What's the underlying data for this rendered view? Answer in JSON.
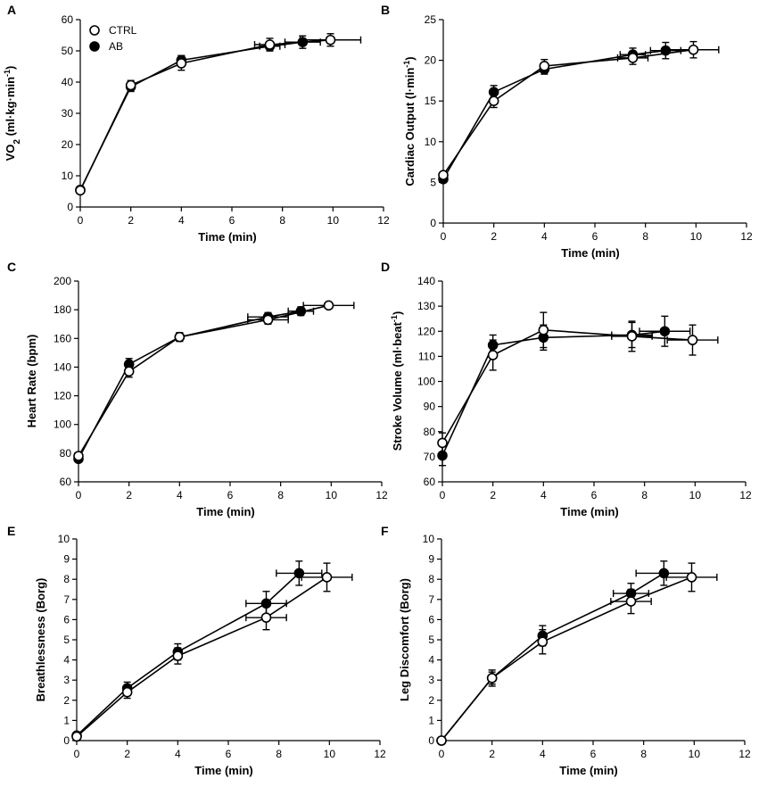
{
  "legend": {
    "series": [
      "CTRL",
      "AB"
    ]
  },
  "chart_data": [
    {
      "panel": "A",
      "type": "line",
      "xlabel": "Time (min)",
      "ylabel_main": "VO",
      "ylabel_sub": "2",
      "ylabel_rest": " (ml·kg·min",
      "ylabel_sup": "-1",
      "ylabel_end": ")",
      "xlim": [
        0,
        12
      ],
      "ylim": [
        0,
        60
      ],
      "xticks": [
        "0",
        "2",
        "4",
        "6",
        "8",
        "10",
        "12"
      ],
      "yticks": [
        "0",
        "10",
        "20",
        "30",
        "40",
        "50",
        "60"
      ],
      "series": [
        {
          "name": "CTRL",
          "x": [
            0,
            2,
            4,
            7.5,
            9.9
          ],
          "y": [
            5.3,
            39.0,
            46.0,
            52.0,
            53.5
          ],
          "yerr": [
            0.5,
            1.5,
            2.2,
            2.0,
            2.0
          ],
          "xerr": [
            0,
            0,
            0,
            0.6,
            1.2
          ]
        },
        {
          "name": "AB",
          "x": [
            0,
            2,
            4,
            7.5,
            8.8
          ],
          "y": [
            5.5,
            38.5,
            47.0,
            51.5,
            52.8
          ],
          "yerr": [
            0.5,
            1.5,
            1.5,
            1.5,
            2.0
          ],
          "xerr": [
            0,
            0,
            0,
            0.4,
            0.7
          ]
        }
      ]
    },
    {
      "panel": "B",
      "type": "line",
      "xlabel": "Time (min)",
      "ylabel_main": "Cardiac Output (l·min",
      "ylabel_sup": "-1",
      "ylabel_end": ")",
      "xlim": [
        0,
        12
      ],
      "ylim": [
        0,
        25
      ],
      "xticks": [
        "0",
        "2",
        "4",
        "6",
        "8",
        "10",
        "12"
      ],
      "yticks": [
        "0",
        "5",
        "10",
        "15",
        "20",
        "25"
      ],
      "series": [
        {
          "name": "CTRL",
          "x": [
            0,
            2,
            4,
            7.5,
            9.9
          ],
          "y": [
            5.9,
            15.0,
            19.3,
            20.3,
            21.3
          ],
          "yerr": [
            0.3,
            0.8,
            0.8,
            0.8,
            1.0
          ],
          "xerr": [
            0,
            0,
            0,
            0.6,
            1.0
          ]
        },
        {
          "name": "AB",
          "x": [
            0,
            2,
            4,
            7.5,
            8.8
          ],
          "y": [
            5.4,
            16.1,
            18.9,
            20.7,
            21.2
          ],
          "yerr": [
            0.3,
            0.8,
            0.6,
            0.8,
            1.0
          ],
          "xerr": [
            0,
            0,
            0,
            0.5,
            0.6
          ]
        }
      ]
    },
    {
      "panel": "C",
      "type": "line",
      "xlabel": "Time (min)",
      "ylabel_main": "Heart Rate (bpm)",
      "xlim": [
        0,
        12
      ],
      "ylim": [
        60,
        200
      ],
      "xticks": [
        "0",
        "2",
        "4",
        "6",
        "8",
        "10",
        "12"
      ],
      "yticks": [
        "60",
        "80",
        "100",
        "120",
        "140",
        "160",
        "180",
        "200"
      ],
      "series": [
        {
          "name": "CTRL",
          "x": [
            0,
            2,
            4,
            7.5,
            9.9
          ],
          "y": [
            78,
            137,
            161,
            173,
            183
          ],
          "yerr": [
            2,
            4,
            3,
            3,
            2
          ],
          "xerr": [
            0,
            0,
            0,
            0.8,
            1.0
          ]
        },
        {
          "name": "AB",
          "x": [
            0,
            2,
            4,
            7.5,
            8.8
          ],
          "y": [
            76,
            142,
            161,
            175,
            179
          ],
          "yerr": [
            2,
            4,
            3,
            3,
            3
          ],
          "xerr": [
            0,
            0,
            0,
            0.8,
            0.5
          ]
        }
      ]
    },
    {
      "panel": "D",
      "type": "line",
      "xlabel": "Time (min)",
      "ylabel_main": "Stroke Volume (ml·beat",
      "ylabel_sup": "-1",
      "ylabel_end": ")",
      "xlim": [
        0,
        12
      ],
      "ylim": [
        60,
        140
      ],
      "xticks": [
        "0",
        "2",
        "4",
        "6",
        "8",
        "10",
        "12"
      ],
      "yticks": [
        "60",
        "70",
        "80",
        "90",
        "100",
        "110",
        "120",
        "130",
        "140"
      ],
      "series": [
        {
          "name": "CTRL",
          "x": [
            0,
            2,
            4,
            7.5,
            9.9
          ],
          "y": [
            75.5,
            110.5,
            120.5,
            118.0,
            116.5
          ],
          "yerr": [
            4,
            6,
            7,
            6,
            6
          ],
          "xerr": [
            0,
            0,
            0,
            0.8,
            1.0
          ]
        },
        {
          "name": "AB",
          "x": [
            0,
            2,
            4,
            7.5,
            8.8
          ],
          "y": [
            70.5,
            114.5,
            117.5,
            118.5,
            120.0
          ],
          "yerr": [
            4,
            4,
            5,
            5,
            6
          ],
          "xerr": [
            0,
            0,
            0,
            0.8,
            1.0
          ]
        }
      ]
    },
    {
      "panel": "E",
      "type": "line",
      "xlabel": "Time (min)",
      "ylabel_main": "Breathlessness (Borg)",
      "xlim": [
        0,
        12
      ],
      "ylim": [
        0,
        10
      ],
      "xticks": [
        "0",
        "2",
        "4",
        "6",
        "8",
        "10",
        "12"
      ],
      "yticks": [
        "0",
        "1",
        "2",
        "3",
        "4",
        "5",
        "6",
        "7",
        "8",
        "9",
        "10"
      ],
      "series": [
        {
          "name": "CTRL",
          "x": [
            0,
            2,
            4,
            7.5,
            9.9
          ],
          "y": [
            0.2,
            2.4,
            4.2,
            6.1,
            8.1
          ],
          "yerr": [
            0.1,
            0.3,
            0.4,
            0.6,
            0.7
          ],
          "xerr": [
            0,
            0,
            0,
            0.8,
            1.0
          ]
        },
        {
          "name": "AB",
          "x": [
            0,
            2,
            4,
            7.5,
            8.8
          ],
          "y": [
            0.25,
            2.6,
            4.4,
            6.8,
            8.3
          ],
          "yerr": [
            0.1,
            0.3,
            0.4,
            0.6,
            0.6
          ],
          "xerr": [
            0,
            0,
            0,
            0.8,
            0.9
          ]
        }
      ]
    },
    {
      "panel": "F",
      "type": "line",
      "xlabel": "Time (min)",
      "ylabel_main": "Leg Discomfort (Borg)",
      "xlim": [
        0,
        12
      ],
      "ylim": [
        0,
        10
      ],
      "xticks": [
        "0",
        "2",
        "4",
        "6",
        "8",
        "10",
        "12"
      ],
      "yticks": [
        "0",
        "1",
        "2",
        "3",
        "4",
        "5",
        "6",
        "7",
        "8",
        "9",
        "10"
      ],
      "series": [
        {
          "name": "CTRL",
          "x": [
            0,
            2,
            4,
            7.5,
            9.9
          ],
          "y": [
            0,
            3.1,
            4.9,
            6.9,
            8.1
          ],
          "yerr": [
            0.05,
            0.4,
            0.6,
            0.6,
            0.7
          ],
          "xerr": [
            0,
            0,
            0,
            0.8,
            1.0
          ]
        },
        {
          "name": "AB",
          "x": [
            0,
            2,
            4,
            7.5,
            8.8
          ],
          "y": [
            0,
            3.1,
            5.2,
            7.3,
            8.3
          ],
          "yerr": [
            0.05,
            0.3,
            0.5,
            0.5,
            0.6
          ],
          "xerr": [
            0,
            0,
            0,
            0.7,
            1.1
          ]
        }
      ]
    }
  ]
}
